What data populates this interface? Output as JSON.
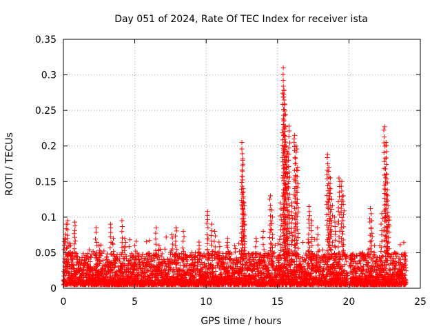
{
  "chart_data": {
    "type": "scatter",
    "title": "Day 051 of 2024, Rate Of TEC Index for receiver ista",
    "xlabel": "GPS time / hours",
    "ylabel": "ROTI / TECUs",
    "xlim": [
      0,
      25
    ],
    "ylim": [
      0,
      0.35
    ],
    "x_ticks": [
      0,
      5,
      10,
      15,
      20,
      25
    ],
    "x_tick_labels": [
      "0",
      "5",
      "10",
      "15",
      "20",
      "25"
    ],
    "y_ticks": [
      0,
      0.05,
      0.1,
      0.15,
      0.2,
      0.25,
      0.3,
      0.35
    ],
    "y_tick_labels": [
      "0",
      "0.05",
      "0.1",
      "0.15",
      "0.2",
      "0.25",
      "0.3",
      "0.35"
    ],
    "grid": true,
    "marker": "plus",
    "marker_color": "#ff0000",
    "series": [
      {
        "name": "ROTI",
        "x": [
          0.1,
          0.2,
          0.3,
          0.5,
          0.8,
          2.3,
          2.5,
          3.3,
          3.5,
          4.1,
          4.3,
          5.0,
          5.5,
          6.5,
          6.7,
          7.6,
          7.9,
          8.4,
          9.0,
          9.5,
          10.1,
          10.4,
          10.6,
          10.9,
          11.5,
          12.0,
          12.5,
          12.55,
          12.6,
          12.65,
          12.7,
          13.5,
          14.0,
          14.5,
          14.6,
          15.2,
          15.4,
          15.45,
          15.5,
          15.55,
          15.6,
          15.7,
          15.8,
          16.0,
          16.2,
          16.3,
          16.4,
          17.2,
          17.4,
          17.8,
          18.5,
          18.6,
          18.7,
          18.8,
          19.0,
          19.3,
          19.5,
          19.6,
          20.1,
          20.5,
          21.0,
          21.5,
          21.6,
          21.8,
          22.3,
          22.5,
          22.6,
          22.65,
          22.7,
          22.8,
          23.2,
          23.6,
          23.9
        ],
        "y": [
          0.07,
          0.09,
          0.095,
          0.06,
          0.093,
          0.085,
          0.06,
          0.09,
          0.07,
          0.095,
          0.07,
          0.06,
          0.045,
          0.085,
          0.06,
          0.075,
          0.085,
          0.08,
          0.05,
          0.065,
          0.108,
          0.09,
          0.08,
          0.065,
          0.07,
          0.06,
          0.205,
          0.18,
          0.14,
          0.12,
          0.09,
          0.07,
          0.08,
          0.13,
          0.11,
          0.12,
          0.31,
          0.278,
          0.258,
          0.227,
          0.2,
          0.19,
          0.228,
          0.12,
          0.215,
          0.2,
          0.17,
          0.115,
          0.095,
          0.085,
          0.188,
          0.17,
          0.155,
          0.125,
          0.1,
          0.155,
          0.15,
          0.13,
          0.03,
          0.035,
          0.04,
          0.112,
          0.095,
          0.06,
          0.105,
          0.227,
          0.205,
          0.16,
          0.13,
          0.1,
          0.05,
          0.04,
          0.035
        ]
      }
    ],
    "noise_band": {
      "description": "dense baseline of ROTI values between 0.005 and 0.05 TECU/s across 0-24 h",
      "y_min": 0.005,
      "y_max": 0.05,
      "gap_hours": [
        19.9,
        20.05
      ]
    }
  }
}
